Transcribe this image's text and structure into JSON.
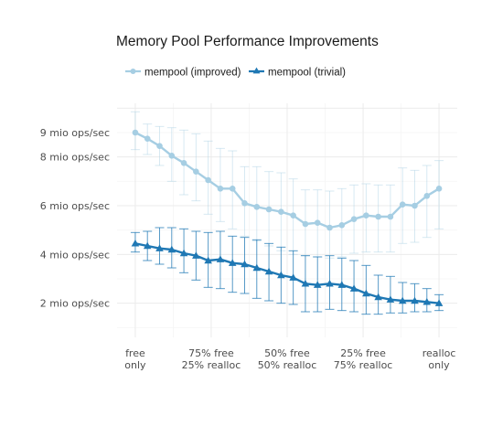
{
  "chart_data": {
    "type": "line",
    "title": "Memory Pool Performance Improvements",
    "xlabel": "",
    "ylabel": "",
    "x": [
      0,
      0.04,
      0.08,
      0.12,
      0.16,
      0.2,
      0.24,
      0.28,
      0.32,
      0.36,
      0.4,
      0.44,
      0.48,
      0.52,
      0.56,
      0.6,
      0.64,
      0.68,
      0.72,
      0.76,
      0.8,
      0.84,
      0.88,
      0.92,
      0.96,
      1.0
    ],
    "xlim": [
      -0.06,
      1.06
    ],
    "ylim": [
      0.6,
      10.2
    ],
    "x_ticks": [
      {
        "x": 0,
        "line1": "free",
        "line2": "only"
      },
      {
        "x": 0.25,
        "line1": "75% free",
        "line2": "25% realloc"
      },
      {
        "x": 0.5,
        "line1": "50% free",
        "line2": "50% realloc"
      },
      {
        "x": 0.75,
        "line1": "25% free",
        "line2": "75% realloc"
      },
      {
        "x": 1.0,
        "line1": "realloc",
        "line2": "only"
      }
    ],
    "y_ticks": [
      {
        "value": 2,
        "label": "2 mio ops/sec"
      },
      {
        "value": 4,
        "label": "4 mio ops/sec"
      },
      {
        "value": 6,
        "label": "6 mio ops/sec"
      },
      {
        "value": 8,
        "label": "8 mio ops/sec"
      },
      {
        "value": 9,
        "label": "9 mio ops/sec"
      }
    ],
    "grid": true,
    "legend_position": "top-left",
    "series": [
      {
        "name": "mempool (improved)",
        "color": "#a6cee3",
        "marker": "circle",
        "values": [
          9.0,
          8.75,
          8.45,
          8.05,
          7.75,
          7.4,
          7.05,
          6.7,
          6.7,
          6.1,
          5.95,
          5.85,
          5.75,
          5.6,
          5.25,
          5.3,
          5.1,
          5.2,
          5.45,
          5.6,
          5.55,
          5.55,
          6.05,
          6.0,
          6.4,
          6.7
        ],
        "error_low": [
          8.3,
          8.1,
          7.65,
          7.0,
          6.45,
          6.2,
          5.65,
          5.35,
          5.05,
          4.75,
          4.55,
          4.35,
          4.15,
          4.0,
          3.95,
          3.9,
          3.85,
          3.9,
          4.05,
          4.1,
          4.1,
          4.1,
          4.45,
          4.5,
          4.7,
          5.05
        ],
        "error_high": [
          9.85,
          9.35,
          9.25,
          9.2,
          9.1,
          8.95,
          8.65,
          8.35,
          8.25,
          7.6,
          7.6,
          7.4,
          7.35,
          7.1,
          6.65,
          6.65,
          6.6,
          6.7,
          6.85,
          6.9,
          6.85,
          6.85,
          7.55,
          7.45,
          7.65,
          7.85
        ]
      },
      {
        "name": "mempool (trivial)",
        "color": "#1f78b4",
        "marker": "triangle",
        "values": [
          4.45,
          4.35,
          4.25,
          4.2,
          4.05,
          3.95,
          3.75,
          3.8,
          3.65,
          3.6,
          3.45,
          3.3,
          3.15,
          3.05,
          2.8,
          2.75,
          2.8,
          2.75,
          2.6,
          2.4,
          2.25,
          2.15,
          2.1,
          2.1,
          2.05,
          2.0
        ],
        "error_low": [
          4.1,
          3.75,
          3.6,
          3.45,
          3.25,
          2.95,
          2.65,
          2.6,
          2.45,
          2.4,
          2.2,
          2.1,
          2.0,
          1.95,
          1.65,
          1.65,
          1.75,
          1.7,
          1.65,
          1.55,
          1.55,
          1.6,
          1.6,
          1.65,
          1.65,
          1.7
        ],
        "error_high": [
          4.9,
          4.95,
          5.1,
          5.1,
          5.05,
          4.95,
          4.9,
          4.95,
          4.75,
          4.7,
          4.6,
          4.45,
          4.3,
          4.15,
          3.95,
          3.9,
          3.95,
          3.85,
          3.75,
          3.55,
          3.15,
          3.1,
          2.85,
          2.8,
          2.6,
          2.35
        ]
      }
    ]
  }
}
